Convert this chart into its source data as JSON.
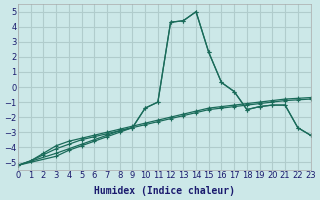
{
  "xlabel": "Humidex (Indice chaleur)",
  "ylabel": "",
  "background_color": "#cce8e8",
  "grid_color": "#b0cccc",
  "line_color": "#1a6b5a",
  "xlim": [
    0,
    23
  ],
  "ylim": [
    -5.5,
    5.5
  ],
  "xticks": [
    0,
    1,
    2,
    3,
    4,
    5,
    6,
    7,
    8,
    9,
    10,
    11,
    12,
    13,
    14,
    15,
    16,
    17,
    18,
    19,
    20,
    21,
    22,
    23
  ],
  "yticks": [
    -5,
    -4,
    -3,
    -2,
    -1,
    0,
    1,
    2,
    3,
    4,
    5
  ],
  "line1_x": [
    0,
    1,
    2,
    3,
    4,
    5,
    6,
    7,
    8,
    9,
    10,
    11,
    12,
    13,
    14,
    15,
    16,
    17,
    18,
    19,
    20,
    21,
    22,
    23
  ],
  "line1_y": [
    -5.2,
    -4.9,
    -4.5,
    -4.1,
    -3.8,
    -3.5,
    -3.3,
    -3.1,
    -2.9,
    -2.7,
    -2.5,
    -2.3,
    -2.1,
    -1.9,
    -1.7,
    -1.5,
    -1.4,
    -1.3,
    -1.2,
    -1.1,
    -1.0,
    -0.9,
    -0.85,
    -0.8
  ],
  "line2_x": [
    0,
    1,
    2,
    3,
    4,
    5,
    6,
    7,
    8,
    9,
    10,
    11,
    12,
    13,
    14,
    15,
    16,
    17,
    18,
    19,
    20,
    21,
    22,
    23
  ],
  "line2_y": [
    -5.2,
    -4.9,
    -4.4,
    -3.9,
    -3.6,
    -3.4,
    -3.2,
    -3.0,
    -2.8,
    -2.6,
    -2.4,
    -2.2,
    -2.0,
    -1.8,
    -1.6,
    -1.4,
    -1.3,
    -1.2,
    -1.1,
    -1.0,
    -0.9,
    -0.8,
    -0.75,
    -0.7
  ],
  "line3_x": [
    0,
    3,
    4,
    5,
    6,
    7,
    8,
    9,
    10,
    11,
    12,
    13,
    14,
    15,
    16,
    17,
    18,
    19,
    20,
    21,
    22,
    23
  ],
  "line3_y": [
    -5.2,
    -4.4,
    -4.1,
    -3.8,
    -3.5,
    -3.2,
    -2.9,
    -2.7,
    -1.4,
    -1.0,
    4.3,
    4.4,
    5.0,
    2.3,
    0.3,
    -0.3,
    -1.5,
    -1.3,
    -1.2,
    -1.2,
    -2.7,
    -3.2
  ],
  "line4_x": [
    0,
    3,
    4,
    5,
    6,
    7,
    8,
    9,
    10,
    11,
    12,
    13,
    14,
    15,
    16,
    17,
    18,
    19,
    20,
    21,
    22,
    23
  ],
  "line4_y": [
    -5.2,
    -4.6,
    -4.2,
    -3.9,
    -3.6,
    -3.3,
    -3.0,
    -2.7,
    -1.4,
    -1.0,
    4.3,
    4.4,
    5.0,
    2.3,
    0.3,
    -0.3,
    -1.5,
    -1.3,
    -1.2,
    -1.2,
    -2.7,
    -3.2
  ]
}
